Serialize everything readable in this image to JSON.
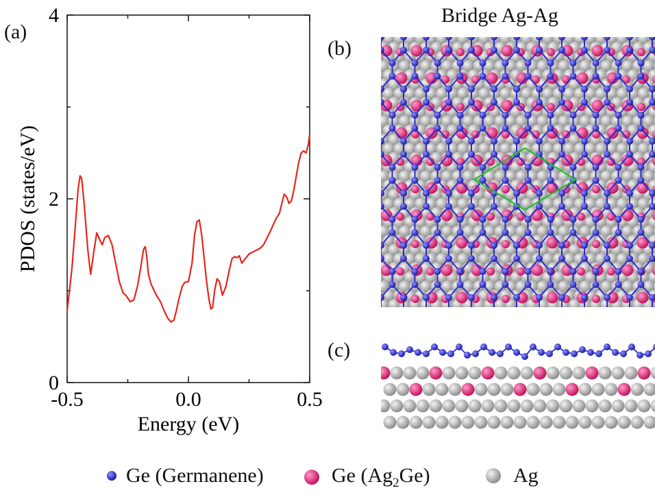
{
  "panel_labels": {
    "a": "(a)",
    "b": "(b)",
    "c": "(c)"
  },
  "structure_title": "Bridge Ag-Ag",
  "colors": {
    "curve": "#e8231c",
    "ge_germanene": "#2a2ad0",
    "ge_ag2ge": "#e8257a",
    "ag": "#b9b9b9",
    "unit_cell": "#22c02a"
  },
  "legend": [
    {
      "symbol": "blue-sphere-icon",
      "label": "Ge (Germanene)"
    },
    {
      "symbol": "pink-sphere-icon",
      "label_pre": "Ge (Ag",
      "label_sub": "2",
      "label_post": "Ge)"
    },
    {
      "symbol": "gray-sphere-icon",
      "label": "Ag"
    }
  ],
  "chart_data": {
    "type": "line",
    "xlabel": "Energy (eV)",
    "ylabel": "PDOS (states/eV)",
    "xlim": [
      -0.5,
      0.5
    ],
    "ylim": [
      0,
      4
    ],
    "xticks": [
      -0.5,
      0.0,
      0.5
    ],
    "xtick_labels": [
      "-0.5",
      "0.0",
      "0.5"
    ],
    "yticks": [
      0,
      2,
      4
    ],
    "ytick_labels": [
      "0",
      "2",
      "4"
    ],
    "series": [
      {
        "x": [
          -0.5,
          -0.48,
          -0.465,
          -0.455,
          -0.447,
          -0.44,
          -0.43,
          -0.415,
          -0.403,
          -0.39,
          -0.378,
          -0.365,
          -0.355,
          -0.345,
          -0.33,
          -0.315,
          -0.3,
          -0.285,
          -0.27,
          -0.255,
          -0.24,
          -0.225,
          -0.21,
          -0.195,
          -0.185,
          -0.178,
          -0.172,
          -0.165,
          -0.155,
          -0.145,
          -0.13,
          -0.115,
          -0.1,
          -0.085,
          -0.072,
          -0.06,
          -0.05,
          -0.04,
          -0.025,
          -0.015,
          0.0,
          0.015,
          0.025,
          0.035,
          0.045,
          0.055,
          0.065,
          0.075,
          0.085,
          0.093,
          0.1,
          0.108,
          0.118,
          0.128,
          0.14,
          0.155,
          0.168,
          0.18,
          0.19,
          0.2,
          0.21,
          0.22,
          0.235,
          0.25,
          0.265,
          0.28,
          0.295,
          0.31,
          0.325,
          0.34,
          0.355,
          0.365,
          0.375,
          0.385,
          0.395,
          0.405,
          0.415,
          0.425,
          0.435,
          0.445,
          0.455,
          0.465,
          0.475,
          0.485,
          0.495,
          0.5
        ],
        "y": [
          0.78,
          1.25,
          1.75,
          2.1,
          2.25,
          2.22,
          1.95,
          1.45,
          1.18,
          1.42,
          1.63,
          1.55,
          1.5,
          1.58,
          1.6,
          1.5,
          1.3,
          1.1,
          0.98,
          0.94,
          0.88,
          0.9,
          1.05,
          1.28,
          1.45,
          1.48,
          1.38,
          1.18,
          1.08,
          1.02,
          0.94,
          0.88,
          0.78,
          0.7,
          0.66,
          0.68,
          0.78,
          0.9,
          1.05,
          1.09,
          1.1,
          1.3,
          1.6,
          1.75,
          1.77,
          1.6,
          1.35,
          1.1,
          0.9,
          0.8,
          0.82,
          1.0,
          1.13,
          1.1,
          0.95,
          1.05,
          1.22,
          1.35,
          1.37,
          1.36,
          1.38,
          1.3,
          1.35,
          1.4,
          1.42,
          1.44,
          1.46,
          1.5,
          1.58,
          1.66,
          1.75,
          1.8,
          1.84,
          1.95,
          2.05,
          2.02,
          1.95,
          1.98,
          2.1,
          2.25,
          2.4,
          2.5,
          2.52,
          2.5,
          2.6,
          2.7
        ]
      }
    ]
  }
}
